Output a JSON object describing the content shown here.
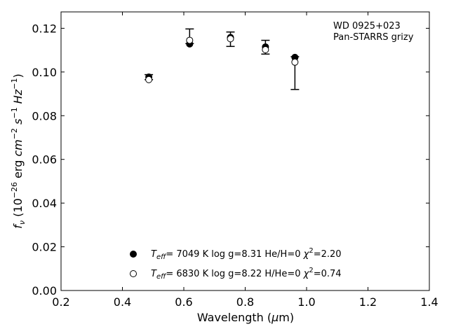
{
  "chart_data": {
    "type": "scatter",
    "xlabel_prefix": "Wavelength (",
    "xlabel_mu": "μ",
    "xlabel_suffix": "m)",
    "ylabel_parts": [
      "f",
      "ν",
      " (10",
      "−26",
      " erg ",
      "cm",
      "−2",
      " ",
      "s",
      "−1",
      " ",
      "Hz",
      "−1",
      ")"
    ],
    "xlim": [
      0.2,
      1.4
    ],
    "ylim": [
      0.0,
      0.1275
    ],
    "xticks": [
      0.2,
      0.4,
      0.6,
      0.8,
      1.0,
      1.2,
      1.4
    ],
    "xtick_labels": [
      "0.2",
      "0.4",
      "0.6",
      "0.8",
      "1.0",
      "1.2",
      "1.4"
    ],
    "yticks": [
      0.0,
      0.02,
      0.04,
      0.06,
      0.08,
      0.1,
      0.12
    ],
    "ytick_labels": [
      "0.00",
      "0.02",
      "0.04",
      "0.06",
      "0.08",
      "0.10",
      "0.12"
    ],
    "annotation": [
      "WD 0925+023",
      "Pan-STARRS grizy"
    ],
    "observed": {
      "x": [
        0.486,
        0.619,
        0.752,
        0.866,
        0.962
      ],
      "y": [
        0.0963,
        0.1145,
        0.115,
        0.1112,
        0.0995
      ],
      "yerr_low": [
        0.0965,
        0.113,
        0.1117,
        0.1082,
        0.092
      ],
      "yerr_high": [
        0.0988,
        0.1197,
        0.1183,
        0.1145,
        0.107
      ]
    },
    "series": [
      {
        "marker": "filled",
        "x": [
          0.486,
          0.619,
          0.752,
          0.866,
          0.962
        ],
        "y": [
          0.0977,
          0.1128,
          0.1158,
          0.1115,
          0.1067
        ],
        "legend_label": [
          "T",
          "eff",
          "=  7049 K  log g=8.31  He/H=0  ",
          "χ",
          "2",
          "=2.20"
        ]
      },
      {
        "marker": "open",
        "x": [
          0.486,
          0.619,
          0.752,
          0.866,
          0.962
        ],
        "y": [
          0.0965,
          0.1145,
          0.1152,
          0.1102,
          0.1045
        ],
        "legend_label": [
          "T",
          "eff",
          "=  6830 K  log g=8.22  H/He=0  ",
          "χ",
          "2",
          "=0.74"
        ]
      }
    ],
    "legend_placement": "bottom-center",
    "grid": false
  }
}
